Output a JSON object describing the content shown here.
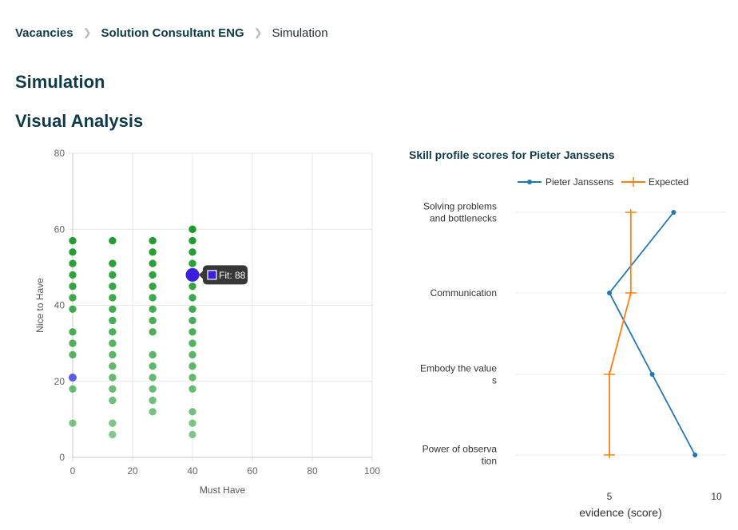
{
  "breadcrumb": {
    "items": [
      "Vacancies",
      "Solution Consultant ENG"
    ],
    "current": "Simulation"
  },
  "page_title": "Simulation",
  "section_title": "Visual Analysis",
  "colors": {
    "primary_text": "#0d3b4a",
    "scatter_green": "#1a9a2a",
    "highlight": "#3a1fe0",
    "selected_blue": "#5a5ae6",
    "series_blue": "#1f77b4",
    "series_orange": "#ff7f0e"
  },
  "chart_data": [
    {
      "type": "scatter",
      "title": "",
      "xlabel": "Must Have",
      "ylabel": "Nice to Have",
      "xlim": [
        0,
        100
      ],
      "ylim": [
        0,
        80
      ],
      "xticks": [
        0,
        20,
        40,
        60,
        80,
        100
      ],
      "yticks": [
        0,
        20,
        40,
        60,
        80
      ],
      "grid": true,
      "points": [
        {
          "x": 0,
          "y": 57
        },
        {
          "x": 0,
          "y": 54
        },
        {
          "x": 0,
          "y": 51
        },
        {
          "x": 0,
          "y": 48
        },
        {
          "x": 0,
          "y": 45
        },
        {
          "x": 0,
          "y": 42
        },
        {
          "x": 0,
          "y": 39
        },
        {
          "x": 0,
          "y": 33
        },
        {
          "x": 0,
          "y": 30
        },
        {
          "x": 0,
          "y": 27
        },
        {
          "x": 0,
          "y": 18
        },
        {
          "x": 0,
          "y": 9
        },
        {
          "x": 13.3,
          "y": 57
        },
        {
          "x": 13.3,
          "y": 51
        },
        {
          "x": 13.3,
          "y": 48
        },
        {
          "x": 13.3,
          "y": 45
        },
        {
          "x": 13.3,
          "y": 42
        },
        {
          "x": 13.3,
          "y": 39
        },
        {
          "x": 13.3,
          "y": 36
        },
        {
          "x": 13.3,
          "y": 33
        },
        {
          "x": 13.3,
          "y": 30
        },
        {
          "x": 13.3,
          "y": 27
        },
        {
          "x": 13.3,
          "y": 24
        },
        {
          "x": 13.3,
          "y": 21
        },
        {
          "x": 13.3,
          "y": 18
        },
        {
          "x": 13.3,
          "y": 15
        },
        {
          "x": 13.3,
          "y": 9
        },
        {
          "x": 13.3,
          "y": 6
        },
        {
          "x": 26.7,
          "y": 57
        },
        {
          "x": 26.7,
          "y": 54
        },
        {
          "x": 26.7,
          "y": 51
        },
        {
          "x": 26.7,
          "y": 48
        },
        {
          "x": 26.7,
          "y": 45
        },
        {
          "x": 26.7,
          "y": 42
        },
        {
          "x": 26.7,
          "y": 39
        },
        {
          "x": 26.7,
          "y": 36
        },
        {
          "x": 26.7,
          "y": 33
        },
        {
          "x": 26.7,
          "y": 27
        },
        {
          "x": 26.7,
          "y": 24
        },
        {
          "x": 26.7,
          "y": 21
        },
        {
          "x": 26.7,
          "y": 18
        },
        {
          "x": 26.7,
          "y": 15
        },
        {
          "x": 26.7,
          "y": 12
        },
        {
          "x": 40,
          "y": 60
        },
        {
          "x": 40,
          "y": 57
        },
        {
          "x": 40,
          "y": 54
        },
        {
          "x": 40,
          "y": 51
        },
        {
          "x": 40,
          "y": 45
        },
        {
          "x": 40,
          "y": 42
        },
        {
          "x": 40,
          "y": 39
        },
        {
          "x": 40,
          "y": 36
        },
        {
          "x": 40,
          "y": 33
        },
        {
          "x": 40,
          "y": 30
        },
        {
          "x": 40,
          "y": 27
        },
        {
          "x": 40,
          "y": 24
        },
        {
          "x": 40,
          "y": 21
        },
        {
          "x": 40,
          "y": 18
        },
        {
          "x": 40,
          "y": 12
        },
        {
          "x": 40,
          "y": 9
        },
        {
          "x": 40,
          "y": 6
        }
      ],
      "selected_point": {
        "x": 0,
        "y": 21
      },
      "highlight_point": {
        "x": 40,
        "y": 48
      },
      "tooltip": {
        "label": "Fit: 88"
      }
    },
    {
      "type": "line",
      "title": "Skill profile scores for Pieter Janssens",
      "xlabel": "evidence (score)",
      "ylabel": "",
      "xlim": [
        0,
        10.5
      ],
      "xticks": [
        5,
        10
      ],
      "legend_position": "top",
      "categories": [
        [
          "Solving problems",
          "and bottlenecks"
        ],
        [
          "Communication"
        ],
        [
          "Embody the value",
          "s"
        ],
        [
          "Power of observa",
          "tion"
        ]
      ],
      "series": [
        {
          "name": "Pieter Janssens",
          "values": [
            8,
            5,
            7,
            9
          ]
        },
        {
          "name": "Expected",
          "values": [
            6,
            6,
            5,
            5
          ]
        }
      ]
    }
  ]
}
